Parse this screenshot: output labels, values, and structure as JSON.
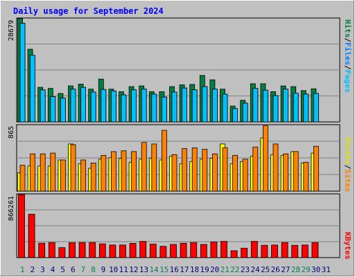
{
  "title": "Daily usage for September 2024",
  "colors": {
    "background": "#c0c0c0",
    "plot": "#c0c0c0",
    "hits": "#008040",
    "files": "#00e0ff",
    "pages": "#00c0ff",
    "visits": "#ffff00",
    "sites": "#ff8000",
    "kbytes": "#ff0000",
    "title": "#0000ff",
    "weekend_day": "#00805c",
    "weekday_day": "#000080",
    "separator": "#808080"
  },
  "legends": {
    "hits": "Hits",
    "files": "Files",
    "pages": "Pages",
    "visits": "Visits",
    "sites": "Sites",
    "kbytes": "KBytes",
    "sep": "/"
  },
  "max_labels": {
    "hits": "28679",
    "visits": "865",
    "kbytes": "866261"
  },
  "chart_data": [
    {
      "type": "bar",
      "panel": "hits-files-pages",
      "categories": [
        "1",
        "2",
        "3",
        "4",
        "5",
        "6",
        "7",
        "8",
        "9",
        "10",
        "11",
        "12",
        "13",
        "14",
        "15",
        "16",
        "17",
        "18",
        "19",
        "20",
        "21",
        "22",
        "23",
        "24",
        "25",
        "26",
        "27",
        "28",
        "29",
        "30",
        "31"
      ],
      "weekend_days": [
        "1",
        "7",
        "8",
        "14",
        "15",
        "21",
        "22",
        "28",
        "29"
      ],
      "ylim": [
        0,
        28679
      ],
      "series": [
        {
          "name": "Hits",
          "values": [
            28679,
            20200,
            9600,
            9300,
            7900,
            10000,
            10500,
            9100,
            11900,
            9100,
            8400,
            9800,
            10000,
            8400,
            8400,
            9800,
            10300,
            10400,
            12900,
            11700,
            9100,
            4400,
            6000,
            10600,
            10600,
            8400,
            10000,
            9800,
            8700,
            9200,
            0
          ]
        },
        {
          "name": "Files",
          "values": [
            27400,
            18500,
            8900,
            7000,
            6600,
            9100,
            9600,
            8300,
            9000,
            8600,
            7500,
            8900,
            9100,
            7700,
            6900,
            8300,
            9400,
            8900,
            9800,
            9100,
            7700,
            3700,
            5200,
            9300,
            8800,
            7300,
            9100,
            8000,
            7700,
            7900,
            0
          ]
        },
        {
          "name": "Pages",
          "values": [
            27400,
            18500,
            8900,
            7000,
            6600,
            9100,
            9600,
            8300,
            9000,
            8600,
            7500,
            8900,
            9100,
            7700,
            6900,
            8300,
            9400,
            8900,
            9800,
            9100,
            7700,
            3700,
            5200,
            9300,
            8800,
            7300,
            9100,
            8000,
            7700,
            7900,
            0
          ]
        }
      ]
    },
    {
      "type": "bar",
      "panel": "visits-sites",
      "categories": [
        "1",
        "2",
        "3",
        "4",
        "5",
        "6",
        "7",
        "8",
        "9",
        "10",
        "11",
        "12",
        "13",
        "14",
        "15",
        "16",
        "17",
        "18",
        "19",
        "20",
        "21",
        "22",
        "23",
        "24",
        "25",
        "26",
        "27",
        "28",
        "29",
        "30",
        "31"
      ],
      "ylim": [
        0,
        865
      ],
      "series": [
        {
          "name": "Visits",
          "values": [
            240,
            330,
            330,
            330,
            410,
            620,
            360,
            300,
            420,
            440,
            430,
            380,
            420,
            430,
            410,
            460,
            360,
            390,
            420,
            430,
            620,
            360,
            390,
            460,
            700,
            480,
            470,
            520,
            370,
            500,
            0
          ]
        },
        {
          "name": "Sites",
          "values": [
            340,
            490,
            490,
            500,
            410,
            610,
            410,
            370,
            470,
            520,
            530,
            520,
            640,
            620,
            800,
            480,
            560,
            570,
            550,
            490,
            570,
            470,
            420,
            580,
            860,
            620,
            490,
            520,
            380,
            590,
            0
          ]
        }
      ]
    },
    {
      "type": "bar",
      "panel": "kbytes",
      "categories": [
        "1",
        "2",
        "3",
        "4",
        "5",
        "6",
        "7",
        "8",
        "9",
        "10",
        "11",
        "12",
        "13",
        "14",
        "15",
        "16",
        "17",
        "18",
        "19",
        "20",
        "21",
        "22",
        "23",
        "24",
        "25",
        "26",
        "27",
        "28",
        "29",
        "30",
        "31"
      ],
      "ylim": [
        0,
        866261
      ],
      "series": [
        {
          "name": "KBytes",
          "values": [
            866261,
            597000,
            198000,
            207000,
            137000,
            206000,
            207000,
            207000,
            189000,
            173000,
            173000,
            196000,
            223000,
            185000,
            155000,
            181000,
            198000,
            207000,
            181000,
            214000,
            223000,
            95000,
            130000,
            223000,
            169000,
            173000,
            207000,
            169000,
            173000,
            207000,
            0
          ]
        }
      ]
    }
  ]
}
